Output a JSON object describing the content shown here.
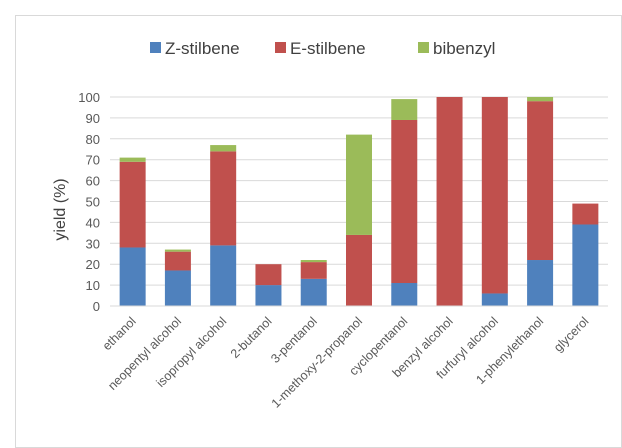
{
  "chart_data": {
    "type": "bar",
    "stacked": true,
    "categories": [
      "ethanol",
      "neopentyl alcohol",
      "isopropyl alcohol",
      "2-butanol",
      "3-pentanol",
      "1-methoxy-2-propanol",
      "cyclopentanol",
      "benzyl alcohol",
      "furfuryl alcohol",
      "1-phenylethanol",
      "glycerol"
    ],
    "series": [
      {
        "name": "Z-stilbene",
        "color": "#4f81bd",
        "values": [
          28,
          17,
          29,
          10,
          13,
          0,
          11,
          0,
          6,
          22,
          39
        ]
      },
      {
        "name": "E-stilbene",
        "color": "#c0504d",
        "values": [
          41,
          9,
          45,
          10,
          8,
          34,
          78,
          100,
          94,
          76,
          10
        ]
      },
      {
        "name": "bibenzyl",
        "color": "#9bbb59",
        "values": [
          2,
          1,
          3,
          0,
          1,
          48,
          10,
          0,
          0,
          2,
          0
        ]
      }
    ],
    "title": "",
    "xlabel": "",
    "ylabel": "yield (%)",
    "ylim": [
      0,
      100
    ],
    "yticks": [
      0,
      10,
      20,
      30,
      40,
      50,
      60,
      70,
      80,
      90,
      100
    ],
    "grid": true,
    "legend": "top"
  }
}
